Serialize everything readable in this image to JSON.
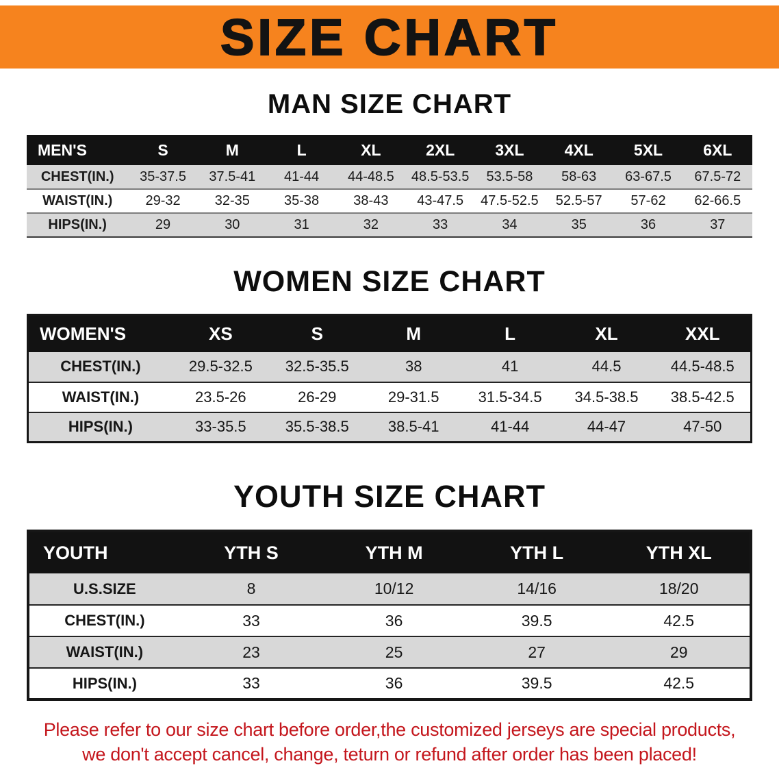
{
  "banner": {
    "title": "SIZE CHART",
    "bg_color": "#f6831e",
    "text_color": "#131313"
  },
  "colors": {
    "table_header_bg": "#121212",
    "table_header_text": "#ffffff",
    "row_shade": "#d8d8d8",
    "disclaimer_red": "#c4161c"
  },
  "sections": [
    {
      "heading": "MAN SIZE CHART",
      "table": {
        "header": [
          "MEN'S",
          "S",
          "M",
          "L",
          "XL",
          "2XL",
          "3XL",
          "4XL",
          "5XL",
          "6XL"
        ],
        "rows": [
          {
            "label": "CHEST(IN.)",
            "values": [
              "35-37.5",
              "37.5-41",
              "41-44",
              "44-48.5",
              "48.5-53.5",
              "53.5-58",
              "58-63",
              "63-67.5",
              "67.5-72"
            ]
          },
          {
            "label": "WAIST(IN.)",
            "values": [
              "29-32",
              "32-35",
              "35-38",
              "38-43",
              "43-47.5",
              "47.5-52.5",
              "52.5-57",
              "57-62",
              "62-66.5"
            ]
          },
          {
            "label": "HIPS(IN.)",
            "values": [
              "29",
              "30",
              "31",
              "32",
              "33",
              "34",
              "35",
              "36",
              "37"
            ]
          }
        ]
      }
    },
    {
      "heading": "WOMEN SIZE CHART",
      "table": {
        "header": [
          "WOMEN'S",
          "XS",
          "S",
          "M",
          "L",
          "XL",
          "XXL"
        ],
        "rows": [
          {
            "label": "CHEST(IN.)",
            "values": [
              "29.5-32.5",
              "32.5-35.5",
              "38",
              "41",
              "44.5",
              "44.5-48.5"
            ]
          },
          {
            "label": "WAIST(IN.)",
            "values": [
              "23.5-26",
              "26-29",
              "29-31.5",
              "31.5-34.5",
              "34.5-38.5",
              "38.5-42.5"
            ]
          },
          {
            "label": "HIPS(IN.)",
            "values": [
              "33-35.5",
              "35.5-38.5",
              "38.5-41",
              "41-44",
              "44-47",
              "47-50"
            ]
          }
        ]
      }
    },
    {
      "heading": "YOUTH SIZE CHART",
      "table": {
        "header": [
          "YOUTH",
          "YTH S",
          "YTH M",
          "YTH L",
          "YTH XL"
        ],
        "rows": [
          {
            "label": "U.S.SIZE",
            "values": [
              "8",
              "10/12",
              "14/16",
              "18/20"
            ]
          },
          {
            "label": "CHEST(IN.)",
            "values": [
              "33",
              "36",
              "39.5",
              "42.5"
            ]
          },
          {
            "label": "WAIST(IN.)",
            "values": [
              "23",
              "25",
              "27",
              "29"
            ]
          },
          {
            "label": "HIPS(IN.)",
            "values": [
              "33",
              "36",
              "39.5",
              "42.5"
            ]
          }
        ]
      }
    }
  ],
  "disclaimer": {
    "line1": "Please refer to our size chart before order,the customized jerseys are special products,",
    "line2": "we don't accept cancel, change, teturn or refund after order has been placed!"
  }
}
